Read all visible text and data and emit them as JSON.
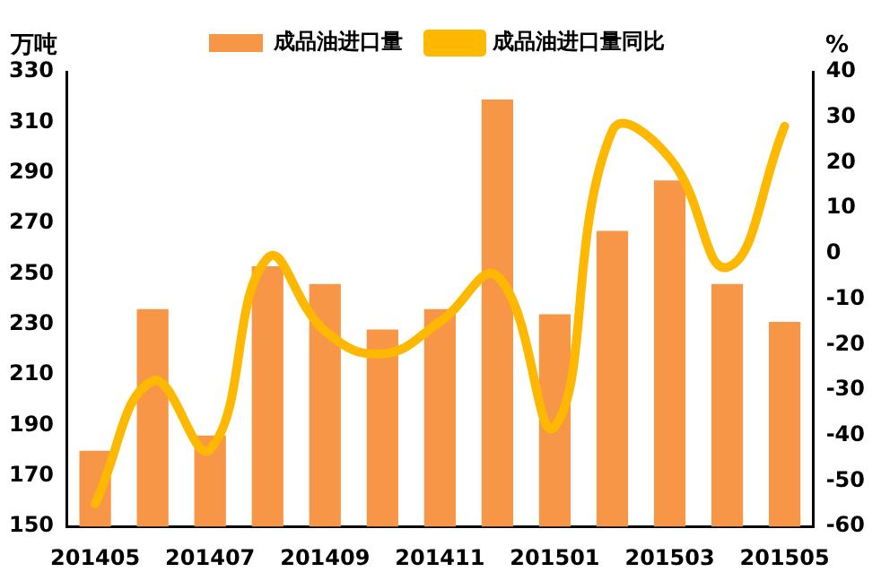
{
  "chart_data": {
    "type": "bar",
    "ylabel": "万吨",
    "y2label": "%",
    "categories": [
      "201405",
      null,
      "201407",
      null,
      "201409",
      null,
      "201411",
      null,
      "201501",
      null,
      "201503",
      null,
      "201505"
    ],
    "series": [
      {
        "name": "成品油进口量",
        "color": "#f79646",
        "values": [
          180,
          236,
          186,
          253,
          246,
          228,
          236,
          319,
          234,
          267,
          287,
          246,
          231
        ]
      },
      {
        "name": "成品油进口量同比",
        "type": "line",
        "axis": "y2",
        "color": "#ffb800",
        "values": [
          -55,
          -28,
          -43,
          -1,
          -17,
          -22,
          -15,
          -5,
          -38,
          27,
          21,
          -3,
          28
        ]
      }
    ],
    "ylim": [
      150,
      330
    ],
    "yticks": [
      150,
      170,
      190,
      210,
      230,
      250,
      270,
      290,
      310,
      330
    ],
    "y2lim": [
      -60,
      40
    ],
    "y2ticks": [
      -60,
      -50,
      -40,
      -30,
      -20,
      -10,
      0,
      10,
      20,
      30,
      40
    ],
    "grid": false,
    "legend": "top",
    "marker": "none",
    "line_style": "solid"
  }
}
